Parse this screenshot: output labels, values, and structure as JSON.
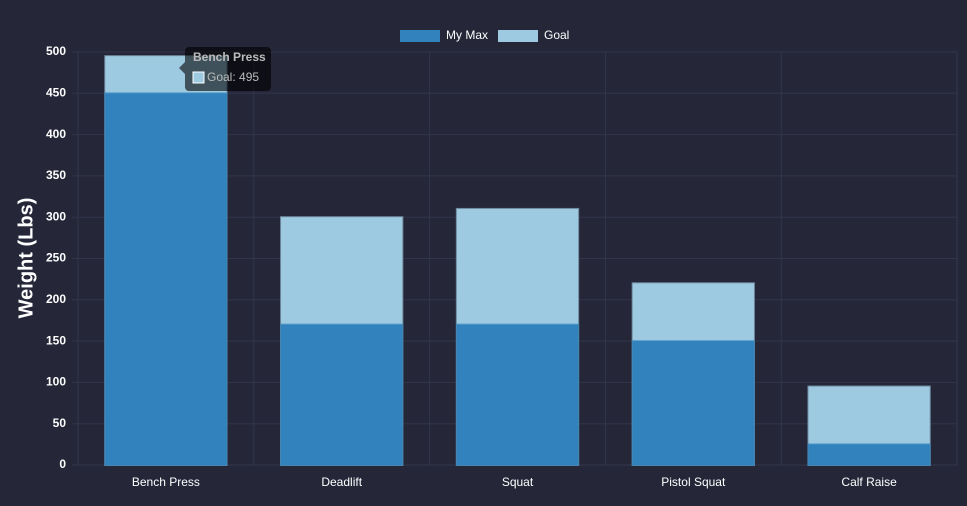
{
  "chart_data": {
    "type": "bar",
    "y_label": "Weight (Lbs)",
    "categories": [
      "Bench Press",
      "Deadlift",
      "Squat",
      "Pistol Squat",
      "Calf Raise"
    ],
    "series": [
      {
        "name": "My Max",
        "color": "#3182bd",
        "values": [
          450,
          170,
          170,
          150,
          25
        ]
      },
      {
        "name": "Goal",
        "color": "#9ecae1",
        "values": [
          495,
          300,
          310,
          220,
          95
        ]
      }
    ],
    "ylim": [
      0,
      500
    ],
    "yticks": [
      0,
      50,
      100,
      150,
      200,
      250,
      300,
      350,
      400,
      450,
      500
    ],
    "grid": true,
    "legend": "top",
    "tooltip": {
      "title": "Bench Press",
      "label": "Goal: 495"
    }
  }
}
